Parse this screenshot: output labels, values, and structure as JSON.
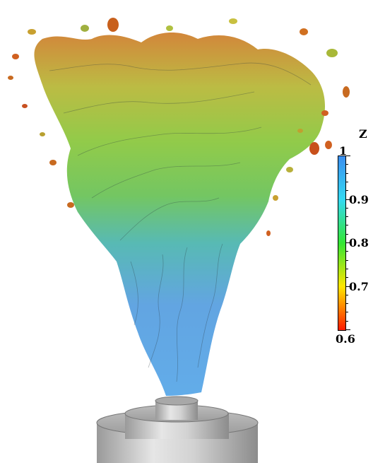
{
  "colorbar": {
    "title": "Z",
    "ticks": [
      "1",
      "0.9",
      "0.8",
      "0.7",
      "0.6"
    ],
    "min": 0.6,
    "max": 1.0,
    "colors": [
      "#ff1a00",
      "#ffe600",
      "#33e633",
      "#33d9f2",
      "#3a8ef0"
    ]
  },
  "scene": {
    "colors": {
      "plume_blue": "#5aa8e8",
      "plume_green": "#6cc35a",
      "plume_yellow": "#b8c83a",
      "plume_orange": "#d8842c",
      "plume_red": "#d0401c",
      "burner": "#c8c8c8"
    }
  }
}
